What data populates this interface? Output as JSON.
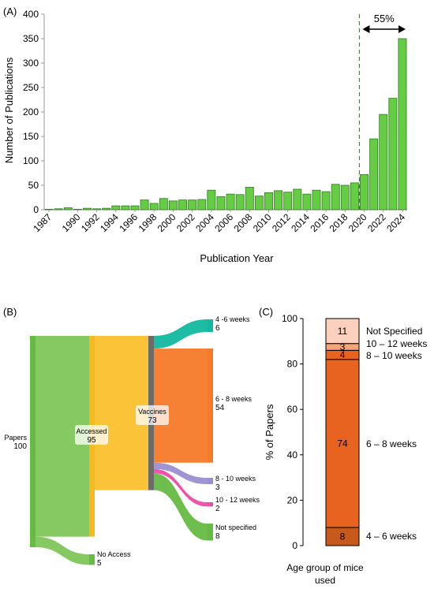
{
  "panels": {
    "a_label": "(A)",
    "b_label": "(B)",
    "c_label": "(C)"
  },
  "colors": {
    "bar_green": "#66cc44",
    "bar_green_stroke": "#2e7d1e",
    "sankey_green": "#66bb44",
    "sankey_yellow": "#f8b820",
    "sankey_gray": "#6b6b6b",
    "sankey_teal": "#12b8a0",
    "sankey_orange": "#f57a2a",
    "sankey_purple": "#9b8fd0",
    "sankey_pink": "#ee4aa8",
    "stack_dark": "#c65a1c",
    "stack_mid": "#e8631f",
    "stack_light": "#f5a47a",
    "stack_pale": "#fbd0bc"
  },
  "chart_data": [
    {
      "panel": "A",
      "type": "bar",
      "xlabel": "Publication Year",
      "ylabel": "Number of Publications",
      "ylim": [
        0,
        400
      ],
      "yticks": [
        0,
        50,
        100,
        150,
        200,
        250,
        300,
        350,
        400
      ],
      "xtick_labels": [
        "1987",
        "1990",
        "1992",
        "1994",
        "1996",
        "1998",
        "2000",
        "2002",
        "2004",
        "2006",
        "2008",
        "2010",
        "2012",
        "2014",
        "2016",
        "2018",
        "2020",
        "2022",
        "2024"
      ],
      "categories": [
        1987,
        1988,
        1989,
        1990,
        1991,
        1992,
        1993,
        1994,
        1995,
        1996,
        1997,
        1998,
        1999,
        2000,
        2001,
        2002,
        2003,
        2004,
        2005,
        2006,
        2007,
        2008,
        2009,
        2010,
        2011,
        2012,
        2013,
        2014,
        2015,
        2016,
        2017,
        2018,
        2019,
        2020,
        2021,
        2022,
        2023,
        2024
      ],
      "values": [
        1,
        2,
        4,
        1,
        3,
        2,
        3,
        8,
        8,
        8,
        20,
        13,
        23,
        18,
        20,
        20,
        21,
        40,
        27,
        32,
        31,
        46,
        28,
        35,
        39,
        36,
        42,
        32,
        40,
        37,
        52,
        50,
        55,
        72,
        145,
        195,
        228,
        350
      ],
      "annotation": {
        "label": "55%",
        "dashed_line_year": 2020
      }
    },
    {
      "panel": "B",
      "type": "sankey",
      "nodes": [
        {
          "id": "papers",
          "label": "Papers",
          "value": 100
        },
        {
          "id": "accessed",
          "label": "Accessed",
          "value": 95
        },
        {
          "id": "no_access",
          "label": "No Access",
          "value": 5
        },
        {
          "id": "vaccines",
          "label": "Vaccines",
          "value": 73
        },
        {
          "id": "w4_6",
          "label": "4 -6 weeks",
          "value": 6
        },
        {
          "id": "w6_8",
          "label": "6 - 8 weeks",
          "value": 54
        },
        {
          "id": "w8_10",
          "label": "8 - 10 weeks",
          "value": 3
        },
        {
          "id": "w10_12",
          "label": "10 - 12 weeks",
          "value": 2
        },
        {
          "id": "not_specified",
          "label": "Not specified",
          "value": 8
        }
      ],
      "links": [
        {
          "source": "papers",
          "target": "accessed",
          "value": 95
        },
        {
          "source": "papers",
          "target": "no_access",
          "value": 5
        },
        {
          "source": "accessed",
          "target": "vaccines",
          "value": 73
        },
        {
          "source": "vaccines",
          "target": "w4_6",
          "value": 6
        },
        {
          "source": "vaccines",
          "target": "w6_8",
          "value": 54
        },
        {
          "source": "vaccines",
          "target": "w8_10",
          "value": 3
        },
        {
          "source": "vaccines",
          "target": "w10_12",
          "value": 2
        },
        {
          "source": "vaccines",
          "target": "not_specified",
          "value": 8
        }
      ]
    },
    {
      "panel": "C",
      "type": "bar",
      "stacked": true,
      "ylabel": "% of Papers",
      "xlabel_line1": "Age group of mice",
      "xlabel_line2": "used",
      "ylim": [
        0,
        100
      ],
      "yticks": [
        0,
        20,
        40,
        60,
        80,
        100
      ],
      "segments": [
        {
          "name": "4 – 6 weeks",
          "value": 8
        },
        {
          "name": "6 – 8 weeks",
          "value": 74
        },
        {
          "name": "8 – 10 weeks",
          "value": 4
        },
        {
          "name": "10 – 12 weeks",
          "value": 3
        },
        {
          "name": "Not Specified",
          "value": 11
        }
      ]
    }
  ]
}
